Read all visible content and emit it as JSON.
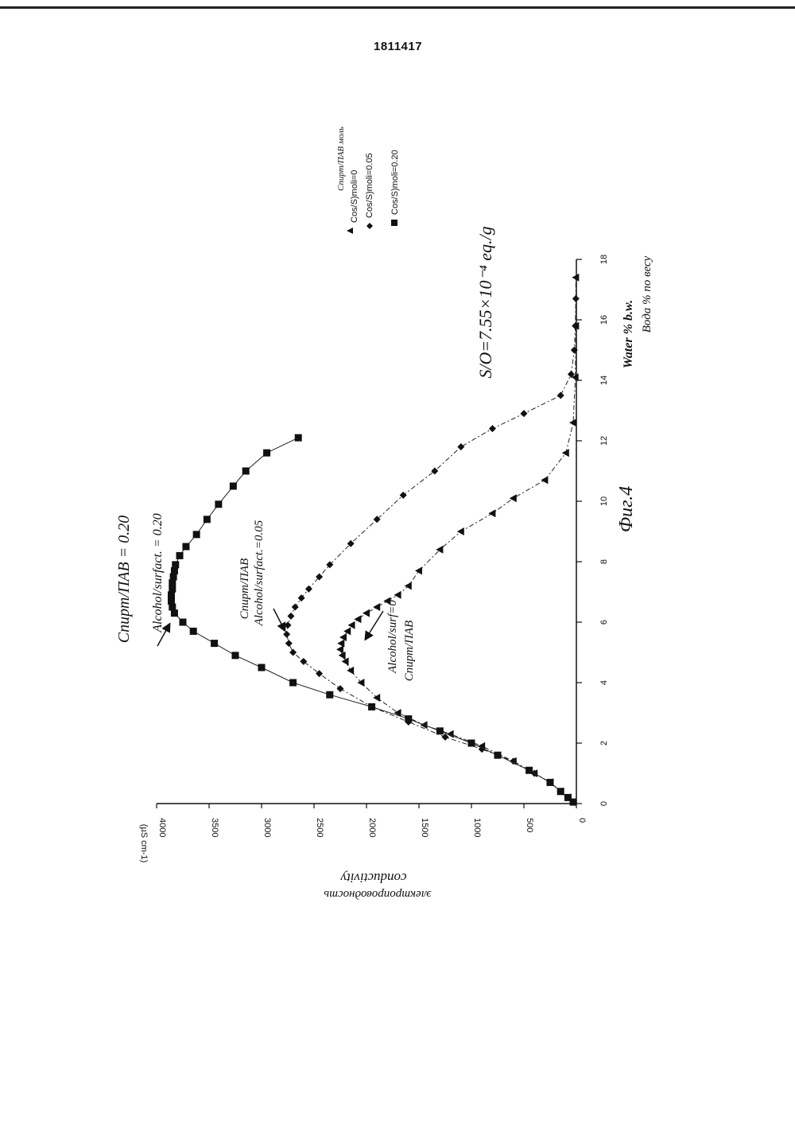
{
  "document": {
    "patent_number": "1811417",
    "figure_label": "Фиг.4",
    "ratio_note": "S/O=7.55×10⁻⁴ eq./g"
  },
  "annotations": {
    "a020_ru": "Спирт/ПАВ = 0.20",
    "a020_en": "Alcohol/surfact. = 0.20",
    "a005_ru": "Спирт/ПАВ",
    "a005_en": "Alcohol/surfact.=0.05",
    "a0_en": "Alcohol/surf=0",
    "a0_ru": "Спирт/ПАВ"
  },
  "chart_data": {
    "type": "scatter",
    "xlabel": "Water % b.w.",
    "xlabel_ru": "Вода % по весу",
    "ylabel": "conductivity",
    "ylabel_ru": "электропроводность",
    "y_unit": "(µS cm-1)",
    "xlim": [
      0,
      18
    ],
    "ylim": [
      0,
      4000
    ],
    "x_ticks": [
      "0",
      "2",
      "4",
      "6",
      "8",
      "10",
      "12",
      "14",
      "16",
      "18"
    ],
    "y_ticks": [
      "0",
      "500",
      "1000",
      "1500",
      "2000",
      "2500",
      "3000",
      "3500",
      "4000"
    ],
    "legend_title": "Спирт/ПАВ моль",
    "legend": [
      "Cos/S)moli=0",
      "Cos/S)moli=0.05",
      "Cos/S)moli=0.20"
    ],
    "series": [
      {
        "name": "Cos/S)moli=0",
        "marker": "triangle",
        "points": [
          [
            0.05,
            30
          ],
          [
            0.2,
            80
          ],
          [
            0.4,
            150
          ],
          [
            0.7,
            250
          ],
          [
            1.0,
            400
          ],
          [
            1.4,
            600
          ],
          [
            1.9,
            900
          ],
          [
            2.3,
            1200
          ],
          [
            2.6,
            1450
          ],
          [
            3.0,
            1700
          ],
          [
            3.5,
            1900
          ],
          [
            4.0,
            2050
          ],
          [
            4.4,
            2150
          ],
          [
            4.7,
            2200
          ],
          [
            4.9,
            2230
          ],
          [
            5.1,
            2250
          ],
          [
            5.3,
            2240
          ],
          [
            5.5,
            2220
          ],
          [
            5.7,
            2180
          ],
          [
            5.9,
            2140
          ],
          [
            6.1,
            2080
          ],
          [
            6.3,
            2000
          ],
          [
            6.5,
            1900
          ],
          [
            6.7,
            1800
          ],
          [
            6.9,
            1700
          ],
          [
            7.2,
            1600
          ],
          [
            7.7,
            1500
          ],
          [
            8.4,
            1300
          ],
          [
            9.0,
            1100
          ],
          [
            9.6,
            800
          ],
          [
            10.1,
            600
          ],
          [
            10.7,
            300
          ],
          [
            11.6,
            100
          ],
          [
            12.6,
            30
          ],
          [
            14.1,
            10
          ],
          [
            15.8,
            5
          ],
          [
            17.4,
            5
          ]
        ]
      },
      {
        "name": "Cos/S)moli=0.05",
        "marker": "diamond",
        "points": [
          [
            0.05,
            30
          ],
          [
            0.2,
            80
          ],
          [
            0.4,
            150
          ],
          [
            0.7,
            250
          ],
          [
            1.0,
            400
          ],
          [
            1.4,
            600
          ],
          [
            1.8,
            900
          ],
          [
            2.2,
            1250
          ],
          [
            2.7,
            1600
          ],
          [
            3.2,
            1950
          ],
          [
            3.8,
            2250
          ],
          [
            4.3,
            2450
          ],
          [
            4.7,
            2600
          ],
          [
            5.0,
            2700
          ],
          [
            5.3,
            2740
          ],
          [
            5.6,
            2760
          ],
          [
            5.9,
            2750
          ],
          [
            6.2,
            2720
          ],
          [
            6.5,
            2680
          ],
          [
            6.8,
            2620
          ],
          [
            7.1,
            2550
          ],
          [
            7.5,
            2450
          ],
          [
            7.9,
            2350
          ],
          [
            8.6,
            2150
          ],
          [
            9.4,
            1900
          ],
          [
            10.2,
            1650
          ],
          [
            11.0,
            1350
          ],
          [
            11.8,
            1100
          ],
          [
            12.4,
            800
          ],
          [
            12.9,
            500
          ],
          [
            13.5,
            150
          ],
          [
            14.2,
            50
          ],
          [
            15.0,
            20
          ],
          [
            15.8,
            10
          ],
          [
            16.7,
            5
          ]
        ]
      },
      {
        "name": "Cos/S)moli=0.20",
        "marker": "square",
        "points": [
          [
            0.05,
            30
          ],
          [
            0.2,
            80
          ],
          [
            0.4,
            150
          ],
          [
            0.7,
            250
          ],
          [
            1.1,
            450
          ],
          [
            1.6,
            750
          ],
          [
            2.0,
            1000
          ],
          [
            2.4,
            1300
          ],
          [
            2.8,
            1600
          ],
          [
            3.2,
            1950
          ],
          [
            3.6,
            2350
          ],
          [
            4.0,
            2700
          ],
          [
            4.5,
            3000
          ],
          [
            4.9,
            3250
          ],
          [
            5.3,
            3450
          ],
          [
            5.7,
            3650
          ],
          [
            6.0,
            3750
          ],
          [
            6.3,
            3830
          ],
          [
            6.5,
            3850
          ],
          [
            6.7,
            3860
          ],
          [
            6.9,
            3860
          ],
          [
            7.1,
            3850
          ],
          [
            7.3,
            3850
          ],
          [
            7.5,
            3840
          ],
          [
            7.7,
            3830
          ],
          [
            7.9,
            3820
          ],
          [
            8.2,
            3780
          ],
          [
            8.5,
            3720
          ],
          [
            8.9,
            3620
          ],
          [
            9.4,
            3520
          ],
          [
            9.9,
            3410
          ],
          [
            10.5,
            3270
          ],
          [
            11.0,
            3150
          ],
          [
            11.6,
            2950
          ],
          [
            12.1,
            2650
          ]
        ]
      }
    ]
  }
}
